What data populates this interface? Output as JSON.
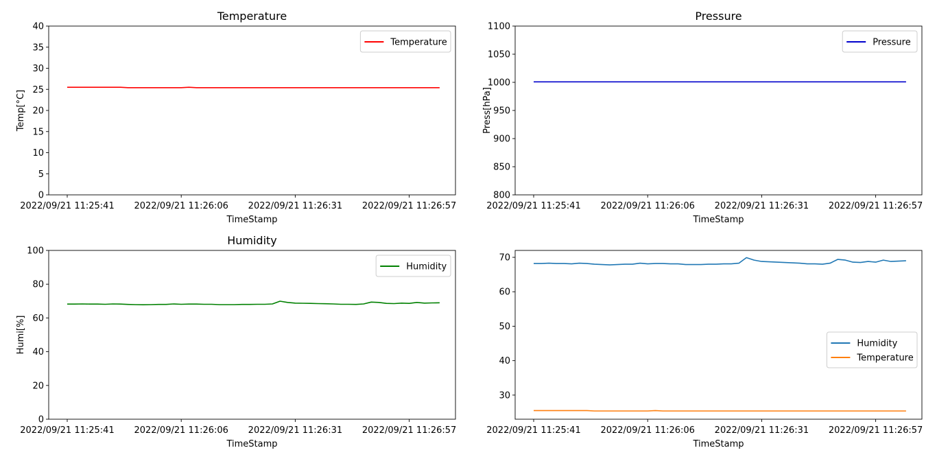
{
  "chart_data": [
    {
      "type": "line",
      "title": "Temperature",
      "xlabel": "TimeStamp",
      "ylabel": "Temp[°C]",
      "ylim": [
        0,
        40
      ],
      "yticks": [
        0,
        5,
        10,
        15,
        20,
        25,
        30,
        35,
        40
      ],
      "xticks": [
        {
          "index": 0,
          "label": "2022/09/21 11:25:41"
        },
        {
          "index": 15,
          "label": "2022/09/21 11:26:06"
        },
        {
          "index": 30,
          "label": "2022/09/21 11:26:31"
        },
        {
          "index": 45,
          "label": "2022/09/21 11:26:57"
        }
      ],
      "legend": "upper right",
      "series": [
        {
          "name": "Temperature",
          "color": "#ff0000",
          "values": [
            25.5,
            25.5,
            25.5,
            25.5,
            25.5,
            25.5,
            25.5,
            25.5,
            25.4,
            25.4,
            25.4,
            25.4,
            25.4,
            25.4,
            25.4,
            25.4,
            25.5,
            25.4,
            25.4,
            25.4,
            25.4,
            25.4,
            25.4,
            25.4,
            25.4,
            25.4,
            25.4,
            25.4,
            25.4,
            25.4,
            25.4,
            25.4,
            25.4,
            25.4,
            25.4,
            25.4,
            25.4,
            25.4,
            25.4,
            25.4,
            25.4,
            25.4,
            25.4,
            25.4,
            25.4,
            25.4,
            25.4,
            25.4,
            25.4,
            25.4
          ]
        }
      ]
    },
    {
      "type": "line",
      "title": "Pressure",
      "xlabel": "TimeStamp",
      "ylabel": "Press[hPa]",
      "ylim": [
        800,
        1100
      ],
      "yticks": [
        800,
        850,
        900,
        950,
        1000,
        1050,
        1100
      ],
      "xticks": [
        {
          "index": 0,
          "label": "2022/09/21 11:25:41"
        },
        {
          "index": 15,
          "label": "2022/09/21 11:26:06"
        },
        {
          "index": 30,
          "label": "2022/09/21 11:26:31"
        },
        {
          "index": 45,
          "label": "2022/09/21 11:26:57"
        }
      ],
      "legend": "upper right",
      "series": [
        {
          "name": "Pressure",
          "color": "#0000cc",
          "values": [
            1000.8,
            1000.9,
            1000.8,
            1000.8,
            1000.8,
            1000.9,
            1000.8,
            1000.8,
            1000.8,
            1000.9,
            1000.8,
            1000.8,
            1000.8,
            1000.9,
            1000.8,
            1000.8,
            1000.8,
            1000.9,
            1000.8,
            1000.8,
            1000.8,
            1000.9,
            1000.8,
            1000.8,
            1000.8,
            1000.9,
            1000.8,
            1000.8,
            1000.8,
            1000.9,
            1000.8,
            1000.8,
            1000.8,
            1000.9,
            1000.8,
            1000.8,
            1000.8,
            1000.9,
            1000.8,
            1000.8,
            1000.8,
            1000.9,
            1000.8,
            1000.8,
            1000.8,
            1000.9,
            1000.8,
            1000.8,
            1000.8,
            1000.8
          ]
        }
      ]
    },
    {
      "type": "line",
      "title": "Humidity",
      "xlabel": "TimeStamp",
      "ylabel": "Humi[%]",
      "ylim": [
        0,
        100
      ],
      "yticks": [
        0,
        20,
        40,
        60,
        80,
        100
      ],
      "xticks": [
        {
          "index": 0,
          "label": "2022/09/21 11:25:41"
        },
        {
          "index": 15,
          "label": "2022/09/21 11:26:06"
        },
        {
          "index": 30,
          "label": "2022/09/21 11:26:31"
        },
        {
          "index": 45,
          "label": "2022/09/21 11:26:57"
        }
      ],
      "legend": "upper right",
      "series": [
        {
          "name": "Humidity",
          "color": "#008000",
          "values": [
            68.2,
            68.2,
            68.3,
            68.2,
            68.2,
            68.1,
            68.3,
            68.2,
            68.0,
            67.9,
            67.8,
            67.9,
            68.0,
            68.0,
            68.3,
            68.1,
            68.2,
            68.2,
            68.1,
            68.1,
            67.9,
            67.9,
            67.9,
            68.0,
            68.0,
            68.1,
            68.1,
            68.3,
            69.9,
            69.2,
            68.8,
            68.7,
            68.6,
            68.5,
            68.4,
            68.3,
            68.1,
            68.1,
            68.0,
            68.3,
            69.4,
            69.2,
            68.6,
            68.5,
            68.8,
            68.6,
            69.2,
            68.8,
            68.9,
            69.0
          ]
        }
      ]
    },
    {
      "type": "line",
      "title": "",
      "xlabel": "TimeStamp",
      "ylabel": "",
      "ylim": [
        23,
        72
      ],
      "yticks": [
        30,
        40,
        50,
        60,
        70
      ],
      "xticks": [
        {
          "index": 0,
          "label": "2022/09/21 11:25:41"
        },
        {
          "index": 15,
          "label": "2022/09/21 11:26:06"
        },
        {
          "index": 30,
          "label": "2022/09/21 11:26:31"
        },
        {
          "index": 45,
          "label": "2022/09/21 11:26:57"
        }
      ],
      "legend": "center right",
      "series": [
        {
          "name": "Humidity",
          "color": "#1f77b4",
          "values": [
            68.2,
            68.2,
            68.3,
            68.2,
            68.2,
            68.1,
            68.3,
            68.2,
            68.0,
            67.9,
            67.8,
            67.9,
            68.0,
            68.0,
            68.3,
            68.1,
            68.2,
            68.2,
            68.1,
            68.1,
            67.9,
            67.9,
            67.9,
            68.0,
            68.0,
            68.1,
            68.1,
            68.3,
            69.9,
            69.2,
            68.8,
            68.7,
            68.6,
            68.5,
            68.4,
            68.3,
            68.1,
            68.1,
            68.0,
            68.3,
            69.4,
            69.2,
            68.6,
            68.5,
            68.8,
            68.6,
            69.2,
            68.8,
            68.9,
            69.0
          ]
        },
        {
          "name": "Temperature",
          "color": "#ff7f0e",
          "values": [
            25.5,
            25.5,
            25.5,
            25.5,
            25.5,
            25.5,
            25.5,
            25.5,
            25.4,
            25.4,
            25.4,
            25.4,
            25.4,
            25.4,
            25.4,
            25.4,
            25.5,
            25.4,
            25.4,
            25.4,
            25.4,
            25.4,
            25.4,
            25.4,
            25.4,
            25.4,
            25.4,
            25.4,
            25.4,
            25.4,
            25.4,
            25.4,
            25.4,
            25.4,
            25.4,
            25.4,
            25.4,
            25.4,
            25.4,
            25.4,
            25.4,
            25.4,
            25.4,
            25.4,
            25.4,
            25.4,
            25.4,
            25.4,
            25.4,
            25.4
          ]
        }
      ]
    }
  ]
}
